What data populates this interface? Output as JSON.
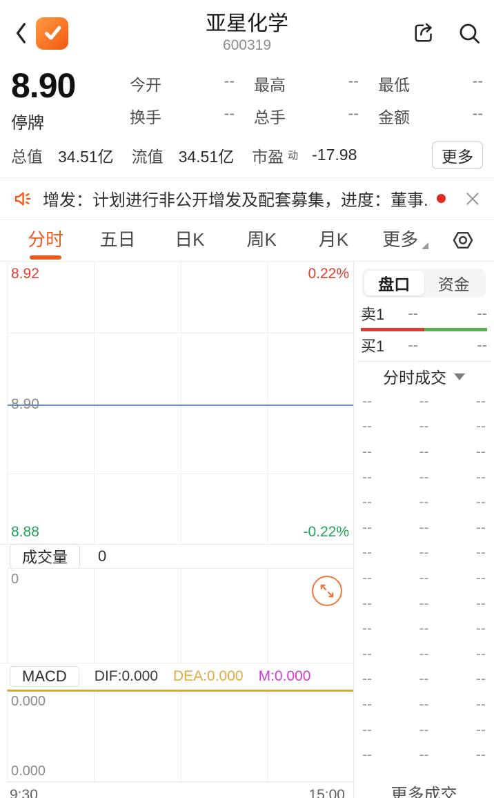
{
  "header": {
    "title": "亚星化学",
    "code": "600319"
  },
  "quote": {
    "price": "8.90",
    "status": "停牌",
    "stats": [
      {
        "label": "今开",
        "value": "--"
      },
      {
        "label": "最高",
        "value": "--"
      },
      {
        "label": "最低",
        "value": "--"
      },
      {
        "label": "换手",
        "value": "--"
      },
      {
        "label": "总手",
        "value": "--"
      },
      {
        "label": "金额",
        "value": "--"
      }
    ],
    "caps": [
      {
        "label": "总值",
        "value": "34.51亿"
      },
      {
        "label": "流值",
        "value": "34.51亿"
      },
      {
        "label": "市盈",
        "sup": "动",
        "value": "-17.98"
      }
    ],
    "more_button": "更多"
  },
  "ticker": {
    "text": "增发：计划进行非公开增发及配套募集，进度：董事..."
  },
  "tabs": {
    "items": [
      "分时",
      "五日",
      "日K",
      "周K",
      "月K",
      "更多"
    ],
    "active": "分时"
  },
  "price_chart": {
    "high_label": "8.92",
    "high_pct": "0.22%",
    "prev_close_label": "8.90",
    "low_label": "8.88",
    "low_pct": "-0.22%"
  },
  "volume": {
    "button": "成交量",
    "value": "0",
    "max_label": "0"
  },
  "macd": {
    "button": "MACD",
    "dif": "DIF:0.000",
    "dea": "DEA:0.000",
    "m": "M:0.000",
    "top_label": "0.000",
    "bottom_label": "0.000"
  },
  "time_axis": {
    "start": "9:30",
    "end": "15:00"
  },
  "order_panel": {
    "tabs": [
      "盘口",
      "资金"
    ],
    "active_tab": "盘口",
    "sell": {
      "label": "卖1",
      "price": "--",
      "volume": "--"
    },
    "buy": {
      "label": "买1",
      "price": "--",
      "volume": "--"
    },
    "section_title": "分时成交",
    "rows": [
      {
        "time": "--",
        "price": "--",
        "volume": "--"
      },
      {
        "time": "--",
        "price": "--",
        "volume": "--"
      },
      {
        "time": "--",
        "price": "--",
        "volume": "--"
      },
      {
        "time": "--",
        "price": "--",
        "volume": "--"
      },
      {
        "time": "--",
        "price": "--",
        "volume": "--"
      },
      {
        "time": "--",
        "price": "--",
        "volume": "--"
      },
      {
        "time": "--",
        "price": "--",
        "volume": "--"
      },
      {
        "time": "--",
        "price": "--",
        "volume": "--"
      },
      {
        "time": "--",
        "price": "--",
        "volume": "--"
      },
      {
        "time": "--",
        "price": "--",
        "volume": "--"
      },
      {
        "time": "--",
        "price": "--",
        "volume": "--"
      },
      {
        "time": "--",
        "price": "--",
        "volume": "--"
      },
      {
        "time": "--",
        "price": "--",
        "volume": "--"
      },
      {
        "time": "--",
        "price": "--",
        "volume": "--"
      },
      {
        "time": "--",
        "price": "--",
        "volume": "--"
      },
      {
        "time": "--",
        "price": "--",
        "volume": "--"
      }
    ],
    "more_link": "更多成交"
  },
  "colors": {
    "accent_orange": "#ee5a1e",
    "up_red": "#e23b30",
    "down_green": "#1fa355",
    "prev_close_blue": "#6b8cc4",
    "macd_gold": "#d9a841",
    "dea_text": "#e2a93e",
    "m_text": "#cc3ecc"
  },
  "chart_data": {
    "type": "line",
    "title": "分时",
    "x_range": [
      "9:30",
      "15:00"
    ],
    "price_axis": {
      "max": 8.92,
      "mid": 8.9,
      "min": 8.88
    },
    "pct_axis": {
      "max": "0.22%",
      "min": "-0.22%"
    },
    "prev_close": 8.9,
    "series": [
      {
        "name": "price",
        "values": []
      },
      {
        "name": "volume",
        "values": []
      },
      {
        "name": "MACD",
        "dif": 0.0,
        "dea": 0.0,
        "m": 0.0,
        "values": []
      }
    ],
    "volume_axis": {
      "max": 0
    },
    "macd_axis": {
      "top": 0.0,
      "bottom": 0.0
    }
  }
}
